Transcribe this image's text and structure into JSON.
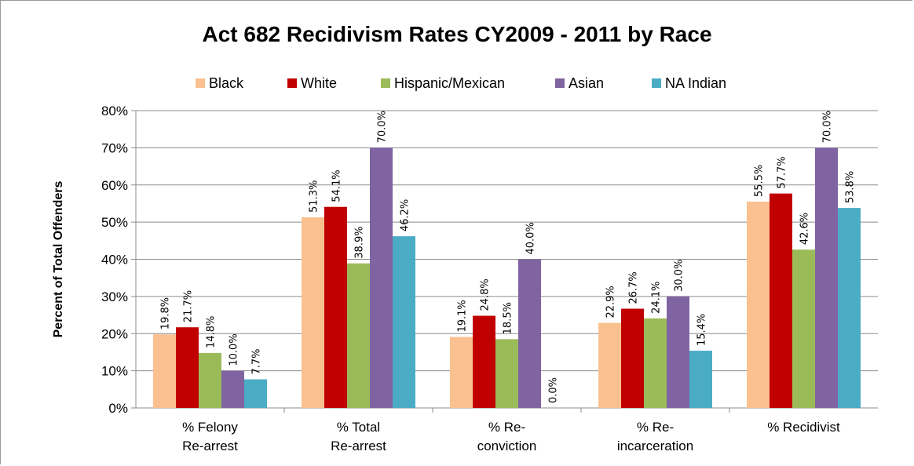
{
  "chart_data": {
    "type": "bar",
    "title": "Act 682 Recidivism Rates CY2009 - 2011 by Race",
    "xlabel": "",
    "ylabel": "Percent of Total Offenders",
    "ylim": [
      0,
      80
    ],
    "yticks": [
      "0%",
      "10%",
      "20%",
      "30%",
      "40%",
      "50%",
      "60%",
      "70%",
      "80%"
    ],
    "grid": true,
    "legend_position": "top",
    "categories": [
      [
        "% Felony",
        "Re-arrest"
      ],
      [
        "% Total",
        "Re-arrest"
      ],
      [
        "% Re-",
        "conviction"
      ],
      [
        "% Re-",
        "incarceration"
      ],
      [
        "% Recidivist"
      ]
    ],
    "series": [
      {
        "name": "Black",
        "color": "#fac090",
        "values": [
          19.8,
          51.3,
          19.1,
          22.9,
          55.5
        ],
        "labels": [
          "19.8%",
          "51.3%",
          "19.1%",
          "22.9%",
          "55.5%"
        ]
      },
      {
        "name": "White",
        "color": "#c00000",
        "values": [
          21.7,
          54.1,
          24.8,
          26.7,
          57.7
        ],
        "labels": [
          "21.7%",
          "54.1%",
          "24.8%",
          "26.7%",
          "57.7%"
        ]
      },
      {
        "name": "Hispanic/Mexican",
        "color": "#9bbb59",
        "values": [
          14.8,
          38.9,
          18.5,
          24.1,
          42.6
        ],
        "labels": [
          "14.8%",
          "38.9%",
          "18.5%",
          "24.1%",
          "42.6%"
        ]
      },
      {
        "name": "Asian",
        "color": "#8064a2",
        "values": [
          10.0,
          70.0,
          40.0,
          30.0,
          70.0
        ],
        "labels": [
          "10.0%",
          "70.0%",
          "40.0%",
          "30.0%",
          "70.0%"
        ]
      },
      {
        "name": "NA Indian",
        "color": "#4bacc6",
        "values": [
          7.7,
          46.2,
          0.0,
          15.4,
          53.8
        ],
        "labels": [
          "7.7%",
          "46.2%",
          "0.0%",
          "15.4%",
          "53.8%"
        ]
      }
    ]
  }
}
